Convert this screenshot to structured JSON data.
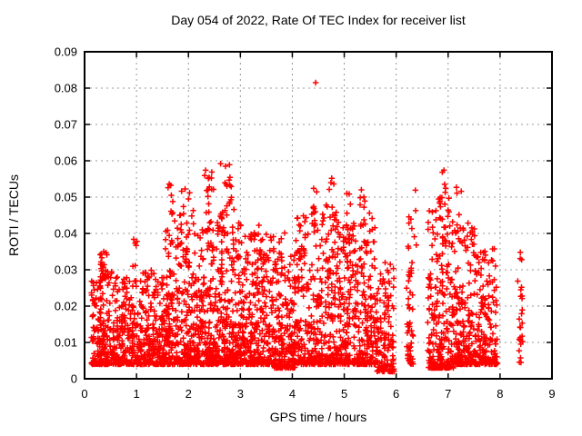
{
  "chart_data": {
    "type": "scatter",
    "title": "Day 054 of 2022, Rate Of TEC Index for receiver list",
    "xlabel": "GPS time / hours",
    "ylabel": "ROTI / TECUs",
    "xlim": [
      0,
      9
    ],
    "ylim": [
      0,
      0.09
    ],
    "xtick_values": [
      0,
      1,
      2,
      3,
      4,
      5,
      6,
      7,
      8,
      9
    ],
    "xtick_labels": [
      "0",
      "1",
      "2",
      "3",
      "4",
      "5",
      "6",
      "7",
      "8",
      "9"
    ],
    "ytick_values": [
      0,
      0.01,
      0.02,
      0.03,
      0.04,
      0.05,
      0.06,
      0.07,
      0.08,
      0.09
    ],
    "ytick_labels": [
      "0",
      "0.01",
      "0.02",
      "0.03",
      "0.04",
      "0.05",
      "0.06",
      "0.07",
      "0.08",
      "0.09"
    ],
    "grid": true,
    "legend": false,
    "marker": "plus",
    "marker_color": "#ff0000",
    "grid_color": "#9a9a9a",
    "axis_color": "#000000",
    "background": "#ffffff",
    "series_name": "receiver list ROTI",
    "seed": 11,
    "cluster_fields": [
      "x_min",
      "x_max",
      "count",
      "y_min",
      "y_max",
      "power"
    ],
    "clusters": [
      [
        0.13,
        0.55,
        200,
        0.004,
        0.03,
        2.2
      ],
      [
        0.3,
        0.45,
        22,
        0.027,
        0.0355,
        1.4
      ],
      [
        0.55,
        1.1,
        230,
        0.004,
        0.028,
        2.2
      ],
      [
        0.92,
        1.03,
        6,
        0.03,
        0.0385,
        1.0
      ],
      [
        1.1,
        1.55,
        215,
        0.004,
        0.03,
        2.2
      ],
      [
        1.55,
        2.0,
        225,
        0.004,
        0.044,
        2.4
      ],
      [
        2.0,
        2.3,
        150,
        0.004,
        0.042,
        2.4
      ],
      [
        2.3,
        2.6,
        160,
        0.004,
        0.046,
        2.4
      ],
      [
        2.6,
        2.9,
        170,
        0.004,
        0.048,
        2.4
      ],
      [
        2.9,
        3.25,
        180,
        0.004,
        0.04,
        2.4
      ],
      [
        3.25,
        3.65,
        185,
        0.004,
        0.04,
        2.4
      ],
      [
        3.65,
        4.05,
        185,
        0.003,
        0.034,
        2.2
      ],
      [
        4.05,
        4.5,
        190,
        0.004,
        0.046,
        2.4
      ],
      [
        4.5,
        4.9,
        180,
        0.004,
        0.048,
        2.4
      ],
      [
        4.9,
        5.25,
        160,
        0.004,
        0.044,
        2.4
      ],
      [
        5.25,
        5.6,
        160,
        0.004,
        0.046,
        2.4
      ],
      [
        5.6,
        5.96,
        140,
        0.002,
        0.032,
        2.2
      ],
      [
        6.2,
        6.33,
        55,
        0.004,
        0.045,
        1.8
      ],
      [
        6.6,
        7.1,
        230,
        0.003,
        0.05,
        2.4
      ],
      [
        7.1,
        7.5,
        185,
        0.004,
        0.044,
        2.4
      ],
      [
        7.5,
        7.95,
        180,
        0.004,
        0.036,
        2.2
      ],
      [
        8.34,
        8.44,
        24,
        0.004,
        0.0355,
        1.2
      ],
      [
        1.58,
        1.7,
        7,
        0.044,
        0.0545,
        1.0
      ],
      [
        1.82,
        1.95,
        6,
        0.044,
        0.053,
        1.0
      ],
      [
        2.0,
        2.12,
        5,
        0.042,
        0.052,
        1.0
      ],
      [
        2.28,
        2.52,
        12,
        0.044,
        0.0574,
        1.0
      ],
      [
        2.68,
        2.85,
        12,
        0.046,
        0.059,
        1.0
      ],
      [
        2.95,
        3.12,
        6,
        0.033,
        0.0445,
        1.0
      ],
      [
        3.25,
        3.42,
        6,
        0.034,
        0.046,
        1.0
      ],
      [
        3.74,
        3.9,
        6,
        0.032,
        0.0415,
        1.0
      ],
      [
        4.12,
        4.3,
        6,
        0.034,
        0.046,
        1.0
      ],
      [
        4.38,
        4.5,
        5,
        0.04,
        0.0515,
        1.0
      ],
      [
        4.68,
        4.85,
        9,
        0.042,
        0.0552,
        1.0
      ],
      [
        4.98,
        5.12,
        6,
        0.037,
        0.051,
        1.0
      ],
      [
        5.28,
        5.42,
        7,
        0.04,
        0.052,
        1.0
      ],
      [
        6.3,
        6.4,
        4,
        0.035,
        0.0519,
        1.0
      ],
      [
        6.82,
        7.0,
        10,
        0.042,
        0.0575,
        1.0
      ],
      [
        7.12,
        7.3,
        6,
        0.037,
        0.0527,
        1.0
      ],
      [
        7.45,
        7.6,
        4,
        0.032,
        0.042,
        1.0
      ]
    ],
    "outlier_points": [
      [
        4.45,
        0.0815
      ],
      [
        4.41,
        0.0524
      ],
      [
        4.41,
        0.0474
      ],
      [
        2.62,
        0.0592
      ],
      [
        2.79,
        0.0589
      ],
      [
        2.45,
        0.0569
      ],
      [
        2.33,
        0.0574
      ],
      [
        6.92,
        0.0574
      ],
      [
        4.76,
        0.0552
      ],
      [
        1.63,
        0.0536
      ],
      [
        5.05,
        0.051
      ],
      [
        5.33,
        0.052
      ],
      [
        6.37,
        0.0519
      ],
      [
        7.16,
        0.0527
      ],
      [
        8.39,
        0.0348
      ],
      [
        0.37,
        0.035
      ]
    ]
  }
}
